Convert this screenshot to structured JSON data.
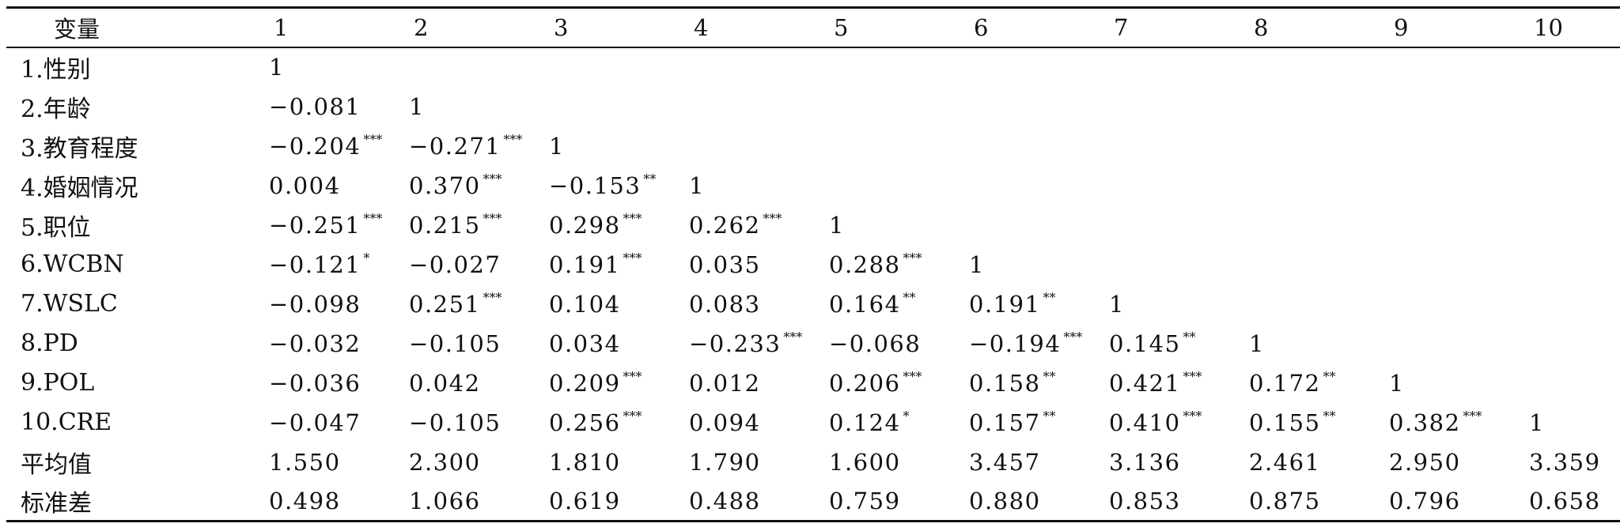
{
  "table": {
    "headers": [
      "变量",
      "1",
      "2",
      "3",
      "4",
      "5",
      "6",
      "7",
      "8",
      "9",
      "10"
    ],
    "rows": [
      {
        "label": "1.性别",
        "cells": [
          {
            "v": "1",
            "s": ""
          }
        ]
      },
      {
        "label": "2.年龄",
        "cells": [
          {
            "v": "−0.081",
            "s": ""
          },
          {
            "v": "1",
            "s": ""
          }
        ]
      },
      {
        "label": "3.教育程度",
        "cells": [
          {
            "v": "−0.204",
            "s": "***"
          },
          {
            "v": "−0.271",
            "s": "***"
          },
          {
            "v": "1",
            "s": ""
          }
        ]
      },
      {
        "label": "4.婚姻情况",
        "cells": [
          {
            "v": "0.004",
            "s": ""
          },
          {
            "v": "0.370",
            "s": "***"
          },
          {
            "v": "−0.153",
            "s": "**"
          },
          {
            "v": "1",
            "s": ""
          }
        ]
      },
      {
        "label": "5.职位",
        "cells": [
          {
            "v": "−0.251",
            "s": "***"
          },
          {
            "v": "0.215",
            "s": "***"
          },
          {
            "v": "0.298",
            "s": "***"
          },
          {
            "v": "0.262",
            "s": "***"
          },
          {
            "v": "1",
            "s": ""
          }
        ]
      },
      {
        "label": "6.WCBN",
        "cells": [
          {
            "v": "−0.121",
            "s": "*"
          },
          {
            "v": "−0.027",
            "s": ""
          },
          {
            "v": "0.191",
            "s": "***"
          },
          {
            "v": "0.035",
            "s": ""
          },
          {
            "v": "0.288",
            "s": "***"
          },
          {
            "v": "1",
            "s": ""
          }
        ]
      },
      {
        "label": "7.WSLC",
        "cells": [
          {
            "v": "−0.098",
            "s": ""
          },
          {
            "v": "0.251",
            "s": "***"
          },
          {
            "v": "0.104",
            "s": ""
          },
          {
            "v": "0.083",
            "s": ""
          },
          {
            "v": "0.164",
            "s": "**"
          },
          {
            "v": "0.191",
            "s": "**"
          },
          {
            "v": "1",
            "s": ""
          }
        ]
      },
      {
        "label": "8.PD",
        "cells": [
          {
            "v": "−0.032",
            "s": ""
          },
          {
            "v": "−0.105",
            "s": ""
          },
          {
            "v": "0.034",
            "s": ""
          },
          {
            "v": "−0.233",
            "s": "***"
          },
          {
            "v": "−0.068",
            "s": ""
          },
          {
            "v": "−0.194",
            "s": "***"
          },
          {
            "v": "0.145",
            "s": "**"
          },
          {
            "v": "1",
            "s": ""
          }
        ]
      },
      {
        "label": "9.POL",
        "cells": [
          {
            "v": "−0.036",
            "s": ""
          },
          {
            "v": "0.042",
            "s": ""
          },
          {
            "v": "0.209",
            "s": "***"
          },
          {
            "v": "0.012",
            "s": ""
          },
          {
            "v": "0.206",
            "s": "***"
          },
          {
            "v": "0.158",
            "s": "**"
          },
          {
            "v": "0.421",
            "s": "***"
          },
          {
            "v": "0.172",
            "s": "**"
          },
          {
            "v": "1",
            "s": ""
          }
        ]
      },
      {
        "label": "10.CRE",
        "cells": [
          {
            "v": "−0.047",
            "s": ""
          },
          {
            "v": "−0.105",
            "s": ""
          },
          {
            "v": "0.256",
            "s": "***"
          },
          {
            "v": "0.094",
            "s": ""
          },
          {
            "v": "0.124",
            "s": "*"
          },
          {
            "v": "0.157",
            "s": "**"
          },
          {
            "v": "0.410",
            "s": "***"
          },
          {
            "v": "0.155",
            "s": "**"
          },
          {
            "v": "0.382",
            "s": "***"
          },
          {
            "v": "1",
            "s": ""
          }
        ]
      },
      {
        "label": "平均值",
        "cells": [
          {
            "v": "1.550",
            "s": ""
          },
          {
            "v": "2.300",
            "s": ""
          },
          {
            "v": "1.810",
            "s": ""
          },
          {
            "v": "1.790",
            "s": ""
          },
          {
            "v": "1.600",
            "s": ""
          },
          {
            "v": "3.457",
            "s": ""
          },
          {
            "v": "3.136",
            "s": ""
          },
          {
            "v": "2.461",
            "s": ""
          },
          {
            "v": "2.950",
            "s": ""
          },
          {
            "v": "3.359",
            "s": ""
          }
        ]
      },
      {
        "label": "标准差",
        "cells": [
          {
            "v": "0.498",
            "s": ""
          },
          {
            "v": "1.066",
            "s": ""
          },
          {
            "v": "0.619",
            "s": ""
          },
          {
            "v": "0.488",
            "s": ""
          },
          {
            "v": "0.759",
            "s": ""
          },
          {
            "v": "0.880",
            "s": ""
          },
          {
            "v": "0.853",
            "s": ""
          },
          {
            "v": "0.875",
            "s": ""
          },
          {
            "v": "0.796",
            "s": ""
          },
          {
            "v": "0.658",
            "s": ""
          }
        ]
      }
    ]
  }
}
